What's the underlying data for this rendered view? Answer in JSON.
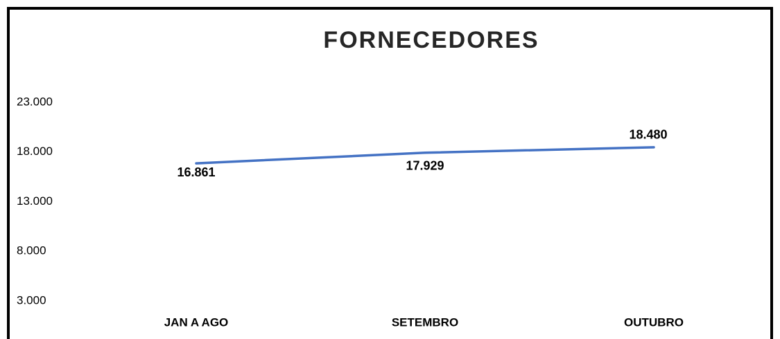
{
  "chart_data": {
    "type": "line",
    "title": "FORNECEDORES",
    "categories": [
      "JAN A AGO",
      "SETEMBRO",
      "OUTUBRO"
    ],
    "series": [
      {
        "name": "FORNECEDORES",
        "color": "#4472c4",
        "values": [
          16861,
          17929,
          18480
        ],
        "value_labels": [
          "16.861",
          "17.929",
          "18.480"
        ]
      }
    ],
    "ylim": [
      3000,
      23000
    ],
    "yticks": [
      {
        "value": 3000,
        "label": "3.000"
      },
      {
        "value": 8000,
        "label": "8.000"
      },
      {
        "value": 13000,
        "label": "13.000"
      },
      {
        "value": 18000,
        "label": "18.000"
      },
      {
        "value": 23000,
        "label": "23.000"
      }
    ],
    "grid": false
  }
}
